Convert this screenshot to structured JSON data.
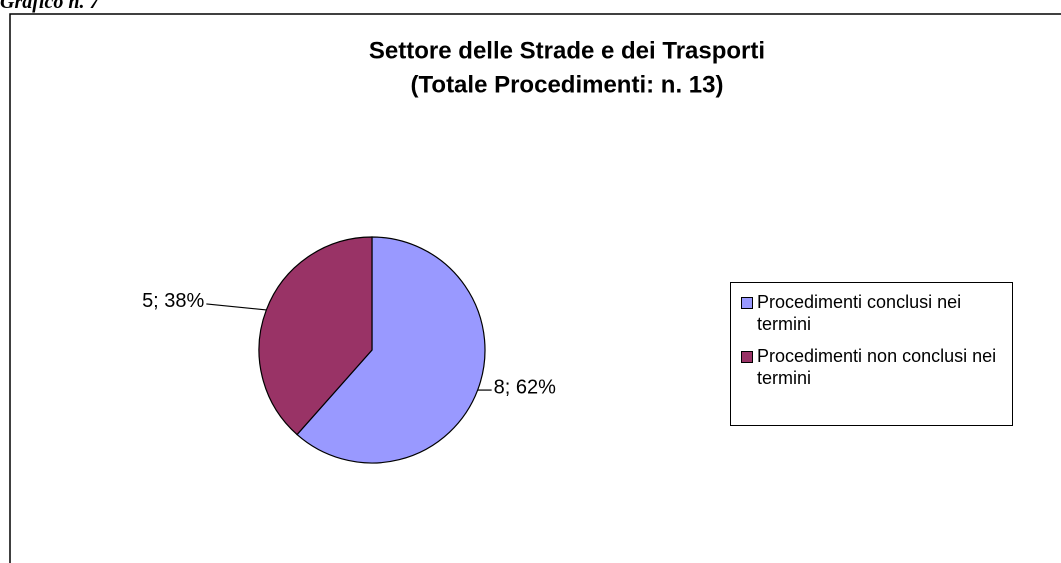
{
  "caption": "Grafico n. 7",
  "chart_data": {
    "type": "pie",
    "title": "Settore delle Strade e dei Trasporti",
    "subtitle": "(Totale Procedimenti: n. 13)",
    "categories": [
      "Procedimenti conclusi nei termini",
      "Procedimenti non conclusi nei termini"
    ],
    "values": [
      8,
      5
    ],
    "value_labels": [
      "8; 62%",
      "5; 38%"
    ],
    "colors": [
      "#9999ff",
      "#993366"
    ],
    "legend": "right"
  }
}
